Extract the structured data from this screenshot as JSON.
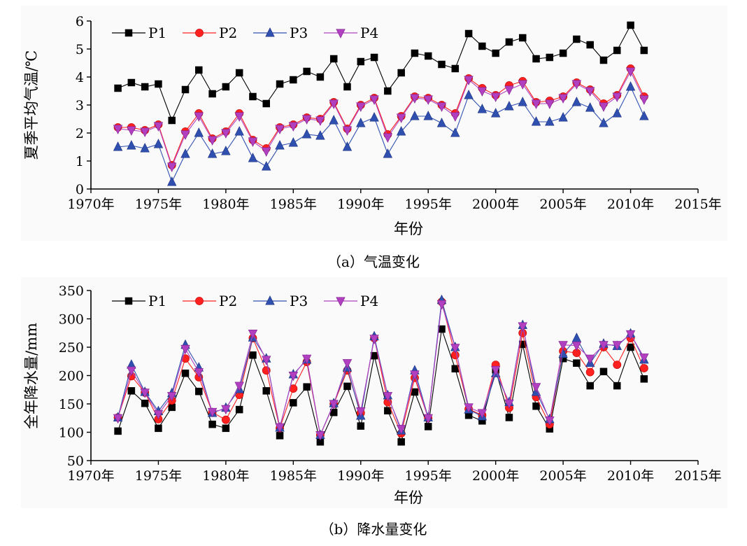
{
  "chart_data": [
    {
      "type": "line",
      "caption": "（a）气温变化",
      "xlabel": "年份",
      "ylabel": "夏季平均气温/℃",
      "xlim": [
        1970,
        2015
      ],
      "ylim": [
        0,
        6
      ],
      "xticks": [
        1970,
        1975,
        1980,
        1985,
        1990,
        1995,
        2000,
        2005,
        2010,
        2015
      ],
      "xtick_labels": [
        "1970年",
        "1975年",
        "1980年",
        "1985年",
        "1990年",
        "1995年",
        "2000年",
        "2005年",
        "2010年",
        "2015年"
      ],
      "yticks": [
        0,
        1,
        2,
        3,
        4,
        5,
        6
      ],
      "ytick_labels": [
        "0",
        "1",
        "2",
        "3",
        "4",
        "5",
        "6"
      ],
      "legend_position": "top-left",
      "x": [
        1972,
        1973,
        1974,
        1975,
        1976,
        1977,
        1978,
        1979,
        1980,
        1981,
        1982,
        1983,
        1984,
        1985,
        1986,
        1987,
        1988,
        1989,
        1990,
        1991,
        1992,
        1993,
        1994,
        1995,
        1996,
        1997,
        1998,
        1999,
        2000,
        2001,
        2002,
        2003,
        2004,
        2005,
        2006,
        2007,
        2008,
        2009,
        2010,
        2011
      ],
      "series": [
        {
          "name": "P1",
          "color": "#000000",
          "marker": "square",
          "values": [
            3.6,
            3.8,
            3.65,
            3.75,
            2.45,
            3.55,
            4.25,
            3.4,
            3.65,
            4.15,
            3.3,
            3.05,
            3.75,
            3.9,
            4.2,
            4.0,
            4.65,
            3.65,
            4.55,
            4.7,
            3.5,
            4.15,
            4.85,
            4.75,
            4.45,
            4.3,
            5.55,
            5.1,
            4.85,
            5.25,
            5.4,
            4.65,
            4.7,
            4.85,
            5.35,
            5.15,
            4.6,
            4.95,
            5.85,
            4.95
          ]
        },
        {
          "name": "P2",
          "color": "#ff2020",
          "marker": "circle",
          "values": [
            2.2,
            2.2,
            2.1,
            2.3,
            0.85,
            2.05,
            2.7,
            1.8,
            2.05,
            2.7,
            1.75,
            1.45,
            2.2,
            2.3,
            2.55,
            2.5,
            3.1,
            2.15,
            3.0,
            3.25,
            1.95,
            2.6,
            3.3,
            3.25,
            3.0,
            2.7,
            3.95,
            3.6,
            3.35,
            3.7,
            3.85,
            3.1,
            3.15,
            3.3,
            3.8,
            3.55,
            3.05,
            3.35,
            4.3,
            3.3
          ]
        },
        {
          "name": "P3",
          "color": "#3050b0",
          "marker": "triangle-up",
          "values": [
            1.5,
            1.55,
            1.45,
            1.6,
            0.25,
            1.25,
            2.0,
            1.25,
            1.35,
            2.05,
            1.1,
            0.8,
            1.55,
            1.65,
            1.95,
            1.9,
            2.45,
            1.5,
            2.35,
            2.55,
            1.25,
            2.05,
            2.6,
            2.6,
            2.35,
            2.0,
            3.35,
            2.85,
            2.7,
            2.95,
            3.1,
            2.4,
            2.4,
            2.55,
            3.1,
            2.9,
            2.35,
            2.7,
            3.65,
            2.6
          ]
        },
        {
          "name": "P4",
          "color": "#b040c0",
          "marker": "triangle-down",
          "values": [
            2.15,
            2.1,
            2.05,
            2.25,
            0.8,
            1.95,
            2.6,
            1.75,
            2.0,
            2.6,
            1.7,
            1.35,
            2.15,
            2.25,
            2.5,
            2.45,
            3.05,
            2.1,
            2.95,
            3.2,
            1.85,
            2.55,
            3.25,
            3.2,
            2.95,
            2.6,
            3.9,
            3.5,
            3.3,
            3.55,
            3.75,
            3.05,
            3.05,
            3.25,
            3.75,
            3.5,
            2.95,
            3.3,
            4.2,
            3.2
          ]
        }
      ]
    },
    {
      "type": "line",
      "caption": "（b）降水量变化",
      "xlabel": "年份",
      "ylabel": "全年降水量/mm",
      "xlim": [
        1970,
        2015
      ],
      "ylim": [
        50,
        350
      ],
      "xticks": [
        1970,
        1975,
        1980,
        1985,
        1990,
        1995,
        2000,
        2005,
        2010,
        2015
      ],
      "xtick_labels": [
        "1970年",
        "1975年",
        "1980年",
        "1985年",
        "1990年",
        "1995年",
        "2000年",
        "2005年",
        "2010年",
        "2015年"
      ],
      "yticks": [
        50,
        100,
        150,
        200,
        250,
        300,
        350
      ],
      "ytick_labels": [
        "50",
        "100",
        "150",
        "200",
        "250",
        "300",
        "350"
      ],
      "legend_position": "top-left",
      "x": [
        1972,
        1973,
        1974,
        1975,
        1976,
        1977,
        1978,
        1979,
        1980,
        1981,
        1982,
        1983,
        1984,
        1985,
        1986,
        1987,
        1988,
        1989,
        1990,
        1991,
        1992,
        1993,
        1994,
        1995,
        1996,
        1997,
        1998,
        1999,
        2000,
        2001,
        2002,
        2003,
        2004,
        2005,
        2006,
        2007,
        2008,
        2009,
        2010,
        2011
      ],
      "series": [
        {
          "name": "P1",
          "color": "#000000",
          "marker": "square",
          "values": [
            102,
            173,
            151,
            107,
            144,
            204,
            172,
            114,
            107,
            140,
            236,
            173,
            94,
            152,
            180,
            83,
            135,
            181,
            111,
            235,
            138,
            83,
            171,
            110,
            282,
            212,
            130,
            120,
            210,
            126,
            255,
            146,
            106,
            230,
            222,
            182,
            207,
            182,
            250,
            194
          ]
        },
        {
          "name": "P2",
          "color": "#ff2020",
          "marker": "circle",
          "values": [
            126,
            199,
            170,
            123,
            156,
            230,
            197,
            135,
            122,
            166,
            266,
            209,
            107,
            177,
            224,
            95,
            150,
            209,
            134,
            266,
            153,
            98,
            196,
            125,
            330,
            236,
            141,
            130,
            219,
            143,
            275,
            162,
            114,
            243,
            240,
            206,
            250,
            219,
            266,
            213
          ]
        },
        {
          "name": "P3",
          "color": "#3050b0",
          "marker": "triangle-up",
          "values": [
            126,
            219,
            171,
            137,
            169,
            254,
            214,
            134,
            143,
            176,
            267,
            230,
            108,
            202,
            228,
            95,
            151,
            214,
            129,
            269,
            165,
            103,
            209,
            126,
            333,
            250,
            140,
            128,
            204,
            153,
            289,
            171,
            123,
            238,
            266,
            222,
            256,
            252,
            274,
            228
          ]
        },
        {
          "name": "P4",
          "color": "#b040c0",
          "marker": "triangle-down",
          "values": [
            125,
            209,
            170,
            132,
            164,
            247,
            206,
            136,
            141,
            182,
            274,
            228,
            109,
            200,
            230,
            95,
            150,
            222,
            137,
            265,
            164,
            106,
            202,
            125,
            326,
            249,
            144,
            134,
            210,
            151,
            287,
            180,
            121,
            254,
            253,
            230,
            254,
            254,
            273,
            232
          ]
        }
      ]
    }
  ]
}
